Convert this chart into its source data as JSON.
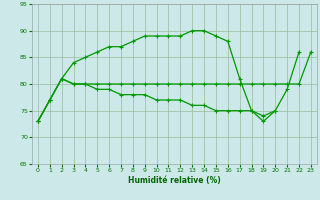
{
  "xlabel": "Humidité relative (%)",
  "background_color": "#cce8e8",
  "line_color": "#009900",
  "xlim": [
    -0.5,
    23.5
  ],
  "ylim": [
    65,
    95
  ],
  "yticks": [
    65,
    70,
    75,
    80,
    85,
    90,
    95
  ],
  "xticks": [
    0,
    1,
    2,
    3,
    4,
    5,
    6,
    7,
    8,
    9,
    10,
    11,
    12,
    13,
    14,
    15,
    16,
    17,
    18,
    19,
    20,
    21,
    22,
    23
  ],
  "s1_x": [
    0,
    1,
    2,
    3,
    4,
    5,
    6,
    7,
    8,
    9,
    10,
    11,
    12,
    13,
    14,
    15,
    16,
    17,
    18,
    19,
    20,
    21,
    22
  ],
  "s1_y": [
    73,
    77,
    81,
    84,
    85,
    86,
    87,
    87,
    88,
    89,
    89,
    89,
    89,
    90,
    90,
    89,
    88,
    81,
    75,
    73,
    75,
    79,
    86
  ],
  "s2_x": [
    0,
    1,
    2,
    3,
    4,
    5,
    6,
    7,
    8,
    9,
    10,
    11,
    12,
    13,
    14,
    15,
    16,
    17,
    18,
    19,
    20,
    21,
    22,
    23
  ],
  "s2_y": [
    73,
    77,
    81,
    80,
    80,
    80,
    80,
    80,
    80,
    80,
    80,
    80,
    80,
    80,
    80,
    80,
    80,
    80,
    80,
    80,
    80,
    80,
    80,
    86
  ],
  "s3_x": [
    0,
    1,
    2,
    3,
    4,
    5,
    6,
    7,
    8,
    9,
    10,
    11,
    12,
    13,
    14,
    15,
    16,
    17,
    18,
    19,
    20
  ],
  "s3_y": [
    73,
    77,
    81,
    80,
    80,
    79,
    79,
    78,
    78,
    78,
    77,
    77,
    77,
    76,
    76,
    75,
    75,
    75,
    75,
    74,
    75
  ]
}
